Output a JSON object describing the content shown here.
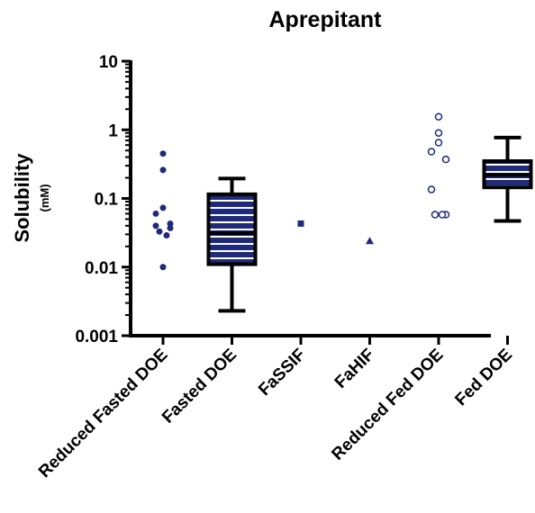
{
  "chart_data": {
    "type": "box",
    "title": "Aprepitant",
    "ylabel": "Solubility",
    "yunit": "(mM)",
    "yscale": "log",
    "ylim": [
      0.001,
      10
    ],
    "yticks": [
      {
        "value": 10,
        "label": "10"
      },
      {
        "value": 1,
        "label": "1"
      },
      {
        "value": 0.1,
        "label": "0.1"
      },
      {
        "value": 0.01,
        "label": "0.01"
      },
      {
        "value": 0.001,
        "label": "0.001"
      }
    ],
    "categories": [
      "Reduced Fasted DOE",
      "Fasted DOE",
      "FaSSIF",
      "FaHIF",
      "Reduced Fed DOE",
      "Fed DOE"
    ],
    "points": [
      {
        "category": "Reduced Fasted DOE",
        "marker": "filled-circle",
        "values": [
          0.45,
          0.26,
          0.073,
          0.06,
          0.043,
          0.04,
          0.037,
          0.033,
          0.029,
          0.01
        ]
      },
      {
        "category": "FaSSIF",
        "marker": "filled-square",
        "values": [
          0.043
        ]
      },
      {
        "category": "FaHIF",
        "marker": "filled-triangle",
        "values": [
          0.024
        ]
      },
      {
        "category": "Reduced Fed DOE",
        "marker": "open-circle",
        "values": [
          1.55,
          0.9,
          0.65,
          0.48,
          0.37,
          0.135,
          0.058,
          0.058,
          0.058
        ]
      }
    ],
    "boxes": [
      {
        "category": "Fasted DOE",
        "min": 0.0023,
        "q1": 0.011,
        "median": 0.031,
        "q3": 0.115,
        "max": 0.195
      },
      {
        "category": "Fed DOE",
        "min": 0.047,
        "q1": 0.145,
        "median": 0.22,
        "q3": 0.35,
        "max": 0.77
      }
    ],
    "grid": false,
    "legend": "none",
    "colors": {
      "marker": "#1f2a7a",
      "box_fill": "#1f2a7a",
      "box_stripe": "#ffffff",
      "axis": "#000000"
    }
  }
}
